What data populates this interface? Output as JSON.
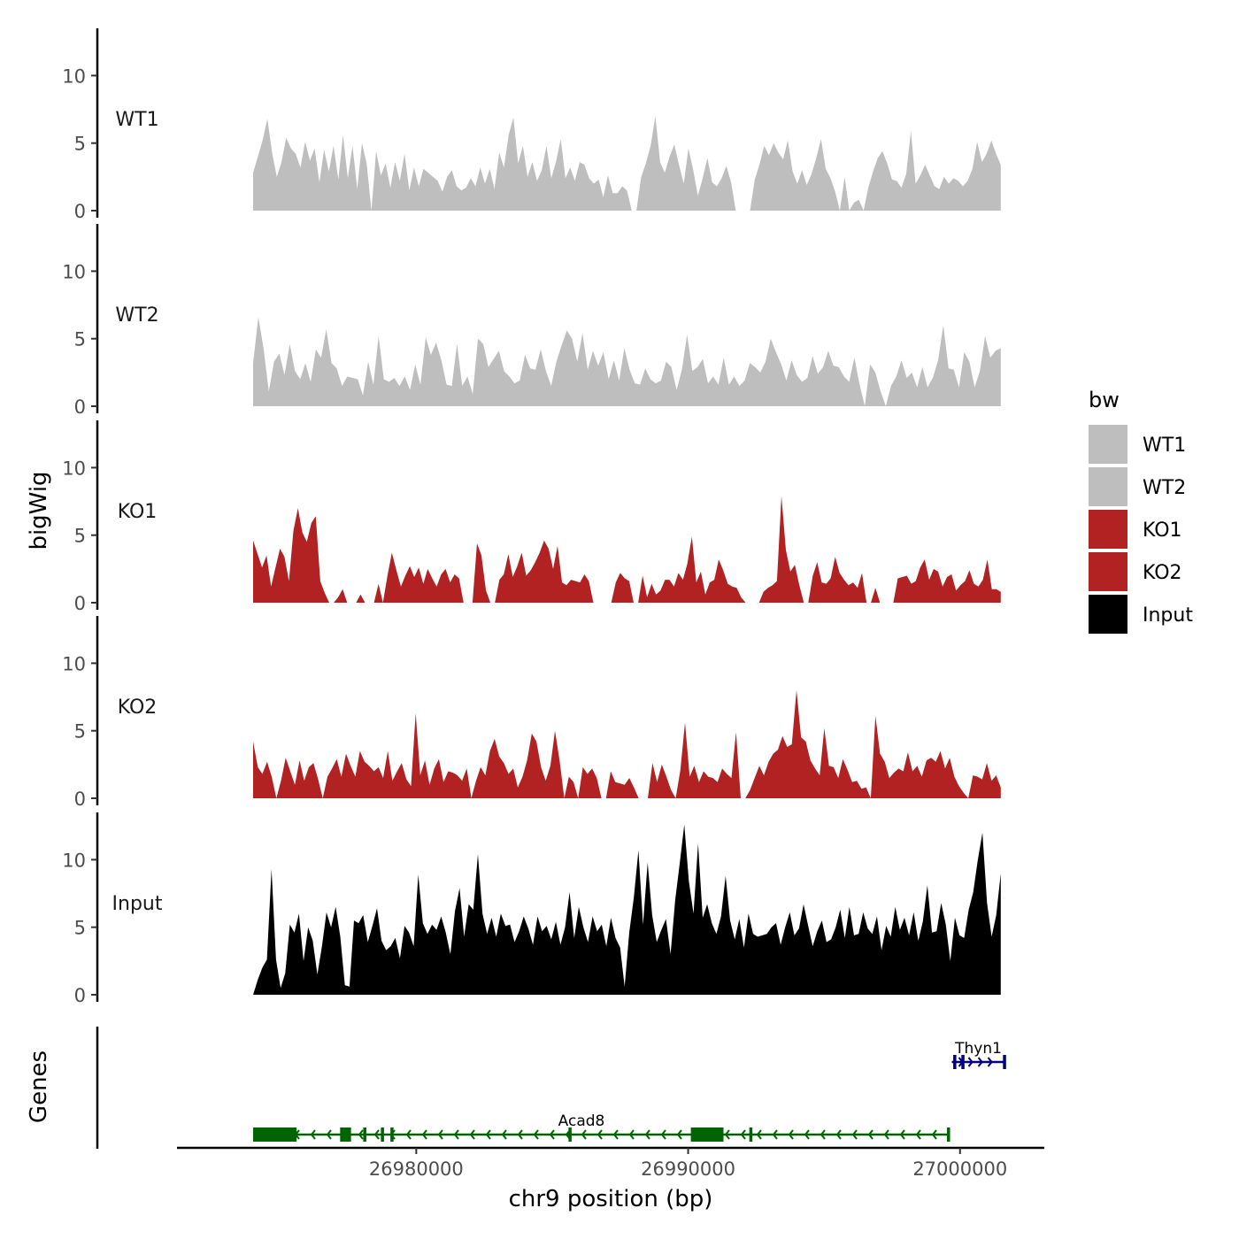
{
  "chart_data": {
    "type": "area",
    "title": "",
    "ylabel": "bigWig",
    "xlabel": "chr9 position (bp)",
    "genes_label": "Genes",
    "x_range": [
      26974000,
      27001500
    ],
    "x_axis_limits": [
      26971200,
      27003100
    ],
    "x_ticks": [
      26980000,
      26990000,
      27000000
    ],
    "x_tick_labels": [
      "26980000",
      "26990000",
      "27000000"
    ],
    "ylim": [
      0,
      13.5
    ],
    "y_ticks": [
      0,
      5,
      10
    ],
    "y_tick_labels": [
      "0",
      "5",
      "10"
    ],
    "legend": {
      "title": "bw",
      "position": "right",
      "entries": [
        {
          "label": "WT1",
          "color": "#bebebe"
        },
        {
          "label": "WT2",
          "color": "#bebebe"
        },
        {
          "label": "KO1",
          "color": "#b22222"
        },
        {
          "label": "KO2",
          "color": "#b22222"
        },
        {
          "label": "Input",
          "color": "#000000"
        }
      ]
    },
    "series": [
      {
        "name": "WT1",
        "color": "#bebebe",
        "values": [
          2.8,
          4.0,
          5.2,
          6.8,
          4.3,
          2.5,
          3.6,
          5.4,
          4.6,
          4.2,
          3.2,
          5.1,
          3.7,
          4.6,
          2.1,
          4.5,
          2.9,
          4.8,
          2.3,
          5.6,
          2.4,
          4.8,
          1.6,
          5.0,
          3.5,
          0.0,
          4.4,
          2.6,
          3.5,
          1.7,
          3.6,
          2.2,
          4.2,
          1.5,
          3.2,
          1.8,
          3.1,
          2.8,
          2.5,
          2.2,
          1.4,
          2.5,
          3.0,
          1.8,
          1.5,
          1.7,
          2.4,
          1.8,
          3.2,
          2.0,
          3.1,
          1.6,
          4.3,
          3.2,
          5.6,
          6.9,
          3.5,
          4.8,
          2.5,
          3.6,
          2.2,
          3.0,
          4.8,
          2.4,
          3.6,
          5.3,
          2.4,
          3.2,
          2.2,
          3.6,
          3.4,
          2.4,
          2.0,
          2.3,
          1.0,
          2.6,
          1.3,
          1.3,
          1.8,
          1.5,
          2.7,
          1.5,
          2.5,
          3.5,
          4.8,
          7.0,
          3.6,
          2.8,
          4.0,
          4.9,
          3.4,
          2.0,
          4.6,
          3.0,
          1.1,
          2.4,
          3.9,
          2.1,
          1.8,
          2.4,
          3.3,
          2.1,
          0.0,
          1.6,
          3.0,
          0.0,
          2.3,
          3.4,
          4.8,
          4.1,
          5.0,
          4.3,
          3.8,
          5.2,
          2.9,
          2.0,
          3.0,
          1.9,
          2.7,
          3.9,
          5.3,
          3.1,
          2.4,
          1.4,
          2.6,
          2.5,
          0.0,
          0.6,
          0.8,
          0.0,
          1.7,
          2.9,
          3.9,
          4.4,
          3.5,
          2.3,
          2.2,
          1.7,
          2.7,
          5.9,
          2.0,
          2.6,
          3.4,
          2.6,
          1.8,
          1.6,
          2.5,
          2.0,
          2.4,
          2.2,
          1.8,
          2.2,
          3.1,
          5.1,
          3.6,
          4.2,
          5.2,
          4.2,
          3.4
        ],
        "gaps": [
          [
            0.505,
            0.515
          ],
          [
            0.64,
            0.666
          ],
          [
            0.782,
            0.786
          ],
          [
            0.885,
            0.88
          ]
        ]
      },
      {
        "name": "WT2",
        "color": "#bebebe",
        "values": [
          3.2,
          6.6,
          4.3,
          1.1,
          3.3,
          3.9,
          2.3,
          4.6,
          2.6,
          2.0,
          3.2,
          1.8,
          4.2,
          3.6,
          5.7,
          3.2,
          2.8,
          1.5,
          2.2,
          2.1,
          2.0,
          0.8,
          3.3,
          1.6,
          5.2,
          2.0,
          1.8,
          2.1,
          1.5,
          2.2,
          1.2,
          3.1,
          1.6,
          5.1,
          3.8,
          4.7,
          3.4,
          1.6,
          1.5,
          4.6,
          1.5,
          2.2,
          0.9,
          5.0,
          4.6,
          2.9,
          3.5,
          4.1,
          2.6,
          2.2,
          1.7,
          1.9,
          3.8,
          2.8,
          2.7,
          4.2,
          2.6,
          1.5,
          3.3,
          4.5,
          5.6,
          5.0,
          3.3,
          5.4,
          2.7,
          4.1,
          3.0,
          4.0,
          2.0,
          3.4,
          1.9,
          4.3,
          2.7,
          1.7,
          1.6,
          2.8,
          2.0,
          1.7,
          1.9,
          3.3,
          2.9,
          1.2,
          2.7,
          5.3,
          2.6,
          2.9,
          3.5,
          1.7,
          2.2,
          1.6,
          3.6,
          1.6,
          2.2,
          1.5,
          1.9,
          3.2,
          2.9,
          2.5,
          3.3,
          5.0,
          4.0,
          3.1,
          1.9,
          3.4,
          2.3,
          1.8,
          2.1,
          3.7,
          2.4,
          2.9,
          4.1,
          3.0,
          2.9,
          2.2,
          1.8,
          3.6,
          1.6,
          2.4,
          3.1,
          2.5,
          1.1,
          0.0,
          1.5,
          2.2,
          3.4,
          2.1,
          2.5,
          1.4,
          2.9,
          1.4,
          2.1,
          3.4,
          6.0,
          2.8,
          2.7,
          1.4,
          4.0,
          3.3,
          1.4,
          2.6,
          5.2,
          3.6,
          4.1,
          4.3
        ],
        "gaps": [
          [
            0.815,
            0.822
          ]
        ]
      },
      {
        "name": "KO1",
        "color": "#b22222",
        "values": [
          4.6,
          3.6,
          2.6,
          3.5,
          1.2,
          2.6,
          4.0,
          3.4,
          1.6,
          5.3,
          7.0,
          5.2,
          4.5,
          5.9,
          6.4,
          1.6,
          0.7,
          0.0,
          0.0,
          0.4,
          1.0,
          2.5,
          0.7,
          1.4,
          0.6,
          0.0,
          0.0,
          0.0,
          1.4,
          0.0,
          2.0,
          3.7,
          2.4,
          1.2,
          2.0,
          2.7,
          1.9,
          2.6,
          1.4,
          2.5,
          1.8,
          1.2,
          2.1,
          2.5,
          1.5,
          2.1,
          1.8,
          2.1,
          1.5,
          1.8,
          4.4,
          3.5,
          0.9,
          0.0,
          0.0,
          1.7,
          2.1,
          3.6,
          1.9,
          2.7,
          3.7,
          2.0,
          2.4,
          3.0,
          3.7,
          4.6,
          4.0,
          2.5,
          4.2,
          1.5,
          1.3,
          1.7,
          1.6,
          1.5,
          2.1,
          1.6,
          4.6,
          1.9,
          0.5,
          0.0,
          0.0,
          1.5,
          2.2,
          1.8,
          1.6,
          2.6,
          1.0,
          2.0,
          0.4,
          1.4,
          0.6,
          0.9,
          1.7,
          1.7,
          1.2,
          2.2,
          1.7,
          2.9,
          4.9,
          1.5,
          2.3,
          0.6,
          1.5,
          1.7,
          3.2,
          2.4,
          1.4,
          1.2,
          1.1,
          0.4,
          1.1,
          0.0,
          0.0,
          0.0,
          0.8,
          1.1,
          1.3,
          1.6,
          7.9,
          3.9,
          2.3,
          2.8,
          1.3,
          0.0,
          0.0,
          2.0,
          3.0,
          1.5,
          1.4,
          1.8,
          3.4,
          2.2,
          1.7,
          1.3,
          1.5,
          1.1,
          2.2,
          1.7,
          1.6,
          1.1,
          0.0,
          0.0,
          1.0,
          0.0,
          1.8,
          1.9,
          2.0,
          1.4,
          1.6,
          2.6,
          3.2,
          1.7,
          2.5,
          2.3,
          1.2,
          1.9,
          2.1,
          0.9,
          1.3,
          1.6,
          2.4,
          1.4,
          1.2,
          1.7,
          3.2,
          1.0,
          1.0,
          0.8
        ],
        "gaps": [
          [
            0.097,
            0.11
          ],
          [
            0.12,
            0.14
          ],
          [
            0.281,
            0.297
          ],
          [
            0.455,
            0.47
          ],
          [
            0.508,
            0.518
          ],
          [
            0.655,
            0.67
          ],
          [
            0.817,
            0.828
          ],
          [
            0.845,
            0.86
          ]
        ]
      },
      {
        "name": "KO2",
        "color": "#b22222",
        "values": [
          4.2,
          2.3,
          1.8,
          2.7,
          1.6,
          0.0,
          1.3,
          3.0,
          2.0,
          1.0,
          2.8,
          1.3,
          2.3,
          2.6,
          1.4,
          0.0,
          1.6,
          2.2,
          2.9,
          1.6,
          3.3,
          2.4,
          1.6,
          3.5,
          2.7,
          2.4,
          2.0,
          2.3,
          1.5,
          3.5,
          1.3,
          2.0,
          2.6,
          1.4,
          0.9,
          6.3,
          1.7,
          2.8,
          1.0,
          2.2,
          2.9,
          1.2,
          2.0,
          1.9,
          1.7,
          1.3,
          2.2,
          0.0,
          1.3,
          2.3,
          1.7,
          3.5,
          4.4,
          3.1,
          2.6,
          1.8,
          2.2,
          0.8,
          1.6,
          2.8,
          4.8,
          4.2,
          2.3,
          1.3,
          2.4,
          5.0,
          2.8,
          0.0,
          1.6,
          1.2,
          0.0,
          2.3,
          1.8,
          2.2,
          1.5,
          1.6,
          2.4,
          2.0,
          1.2,
          1.1,
          1.0,
          1.5,
          0.8,
          1.4,
          0.0,
          0.0,
          2.6,
          1.2,
          2.5,
          1.6,
          0.6,
          0.0,
          2.1,
          5.6,
          1.6,
          2.4,
          1.2,
          2.0,
          1.6,
          1.5,
          1.2,
          2.2,
          1.8,
          1.5,
          4.9,
          1.0,
          0.0,
          0.6,
          1.5,
          2.4,
          1.7,
          2.7,
          3.3,
          3.6,
          4.6,
          3.8,
          4.0,
          8.0,
          4.5,
          4.2,
          2.8,
          2.2,
          1.7,
          5.2,
          2.4,
          2.3,
          1.5,
          2.9,
          2.1,
          1.2,
          1.3,
          0.7,
          0.8,
          0.0,
          6.1,
          3.3,
          2.7,
          1.5,
          1.9,
          2.2,
          2.0,
          3.4,
          2.0,
          2.4,
          1.6,
          2.8,
          3.0,
          2.7,
          3.5,
          2.2,
          3.0,
          1.6,
          0.9,
          0.4,
          0.0,
          1.7,
          1.6,
          1.4,
          2.6,
          1.3,
          1.7,
          0.8
        ],
        "gaps": [
          [
            0.462,
            0.474
          ],
          [
            0.513,
            0.52
          ],
          [
            0.648,
            0.654
          ]
        ]
      },
      {
        "name": "Input",
        "color": "#000000",
        "values": [
          0.0,
          1.1,
          2.0,
          2.6,
          9.3,
          2.6,
          0.5,
          1.6,
          5.2,
          4.6,
          6.0,
          2.5,
          5.0,
          4.0,
          1.5,
          3.6,
          6.1,
          5.0,
          6.5,
          4.3,
          0.7,
          0.6,
          5.5,
          5.3,
          5.9,
          3.9,
          5.1,
          6.4,
          4.0,
          3.3,
          3.6,
          4.2,
          2.7,
          5.1,
          4.6,
          3.6,
          8.9,
          5.3,
          4.5,
          5.2,
          4.8,
          5.8,
          4.6,
          3.0,
          6.2,
          7.9,
          4.3,
          6.7,
          6.3,
          10.4,
          6.0,
          4.5,
          5.7,
          4.3,
          6.0,
          5.1,
          5.2,
          3.9,
          4.7,
          5.8,
          4.9,
          3.7,
          5.8,
          4.7,
          5.1,
          4.1,
          5.4,
          3.7,
          5.0,
          7.6,
          4.2,
          6.5,
          5.0,
          3.9,
          5.8,
          4.7,
          5.2,
          3.6,
          5.7,
          4.2,
          3.5,
          0.6,
          4.6,
          7.2,
          10.7,
          5.2,
          9.8,
          5.9,
          3.9,
          4.8,
          5.6,
          3.0,
          7.0,
          9.7,
          12.6,
          8.4,
          6.0,
          11.2,
          5.7,
          6.7,
          5.3,
          4.5,
          5.8,
          8.8,
          5.5,
          4.1,
          5.6,
          3.5,
          6.0,
          4.5,
          4.3,
          4.4,
          4.5,
          5.0,
          5.3,
          3.7,
          5.0,
          6.1,
          4.4,
          4.9,
          6.7,
          5.1,
          3.6,
          4.7,
          5.5,
          3.9,
          4.1,
          5.0,
          6.3,
          4.2,
          6.5,
          4.4,
          4.5,
          6.1,
          4.9,
          4.5,
          5.8,
          3.3,
          5.1,
          4.3,
          6.5,
          4.8,
          5.7,
          4.4,
          6.1,
          4.0,
          5.4,
          8.1,
          4.6,
          4.7,
          6.8,
          5.2,
          2.5,
          5.7,
          4.4,
          4.2,
          6.3,
          7.6,
          10.0,
          12.0,
          6.8,
          4.3,
          5.9,
          9.0
        ],
        "gaps": []
      }
    ],
    "genes": [
      {
        "name": "Thyn1",
        "strand": "+",
        "color": "#000080",
        "start": 26999700,
        "end": 27001650,
        "exons": [
          [
            26999750,
            26999820
          ],
          [
            27000050,
            27000150
          ],
          [
            27001580,
            27001650
          ]
        ]
      },
      {
        "name": "Acad8",
        "strand": "-",
        "color": "#006400",
        "start": 26974000,
        "end": 26999600,
        "exons": [
          [
            26974000,
            26975600
          ],
          [
            26977200,
            26977600
          ],
          [
            26978050,
            26978150
          ],
          [
            26978700,
            26978800
          ],
          [
            26979050,
            26979150
          ],
          [
            26985600,
            26985700
          ],
          [
            26990100,
            26991300
          ],
          [
            26992250,
            26992350
          ],
          [
            26999520,
            26999600
          ]
        ]
      }
    ]
  }
}
